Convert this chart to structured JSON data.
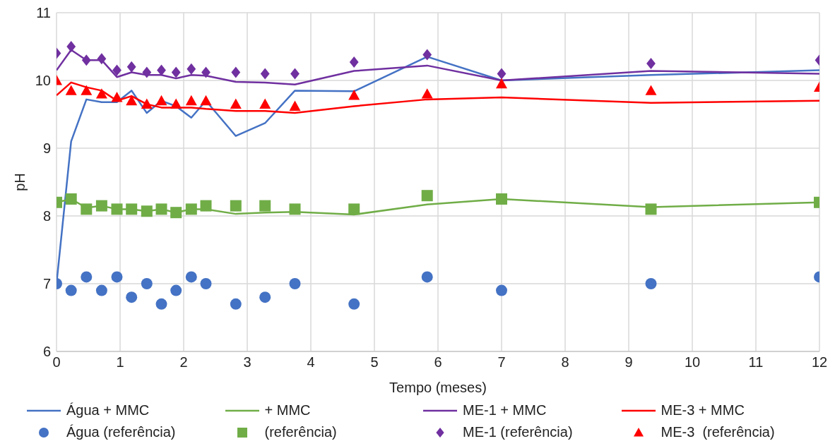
{
  "chart_data": {
    "type": "line",
    "xlabel": "Tempo (meses)",
    "ylabel": "pH",
    "x": [
      0,
      0.23,
      0.47,
      0.71,
      0.95,
      1.18,
      1.42,
      1.65,
      1.88,
      2.12,
      2.35,
      2.82,
      3.28,
      3.75,
      4.68,
      5.83,
      7.0,
      9.35,
      12
    ],
    "series": [
      {
        "name": "Água + MMC",
        "marker": "none",
        "color": "#4472c4",
        "values": [
          7.0,
          9.1,
          9.72,
          9.68,
          9.68,
          9.85,
          9.52,
          9.7,
          9.62,
          9.45,
          9.7,
          9.18,
          9.37,
          9.85,
          9.84,
          10.35,
          10.0,
          10.08,
          10.15
        ]
      },
      {
        "name": "+ MMC",
        "marker": "none",
        "color": "#70ad47",
        "values": [
          8.2,
          8.25,
          8.12,
          8.15,
          8.1,
          8.1,
          8.07,
          8.1,
          8.05,
          8.1,
          8.1,
          8.03,
          8.05,
          8.06,
          8.02,
          8.17,
          8.25,
          8.13,
          8.2
        ]
      },
      {
        "name": "ME-1 + MMC",
        "marker": "none",
        "color": "#7030a0",
        "values": [
          10.15,
          10.45,
          10.3,
          10.3,
          10.05,
          10.12,
          10.08,
          10.08,
          10.03,
          10.08,
          10.07,
          9.98,
          9.97,
          9.94,
          10.14,
          10.22,
          10.0,
          10.14,
          10.1
        ]
      },
      {
        "name": "ME-3 + MMC",
        "marker": "none",
        "color": "#ff0000",
        "values": [
          9.78,
          9.97,
          9.9,
          9.85,
          9.7,
          9.77,
          9.65,
          9.6,
          9.6,
          9.6,
          9.58,
          9.55,
          9.55,
          9.52,
          9.62,
          9.72,
          9.75,
          9.67,
          9.7
        ]
      },
      {
        "name": "Água (referência)",
        "type": "scatter",
        "marker": "circle",
        "color": "#4472c4",
        "values": [
          7.0,
          6.9,
          7.1,
          6.9,
          7.1,
          6.8,
          7.0,
          6.7,
          6.9,
          7.1,
          7.0,
          6.7,
          6.8,
          7.0,
          6.7,
          7.1,
          6.9,
          7.0,
          7.1
        ]
      },
      {
        "name": "(referência)",
        "type": "scatter",
        "marker": "square",
        "color": "#70ad47",
        "values": [
          8.2,
          8.25,
          8.1,
          8.15,
          8.1,
          8.1,
          8.07,
          8.1,
          8.05,
          8.1,
          8.15,
          8.15,
          8.15,
          8.1,
          8.1,
          8.3,
          8.25,
          8.1,
          8.2
        ]
      },
      {
        "name": "ME-1 (referência)",
        "type": "scatter",
        "marker": "diamond",
        "color": "#7030a0",
        "values": [
          10.4,
          10.5,
          10.3,
          10.32,
          10.15,
          10.2,
          10.12,
          10.15,
          10.12,
          10.17,
          10.12,
          10.12,
          10.1,
          10.1,
          10.27,
          10.38,
          10.1,
          10.25,
          10.3
        ]
      },
      {
        "name": "ME-3  (referência)",
        "type": "scatter",
        "marker": "triangle",
        "color": "#ff0000",
        "values": [
          10.0,
          9.85,
          9.85,
          9.8,
          9.75,
          9.7,
          9.65,
          9.7,
          9.65,
          9.7,
          9.7,
          9.65,
          9.65,
          9.62,
          9.78,
          9.8,
          9.95,
          9.85,
          9.9
        ]
      }
    ],
    "xlim": [
      0,
      12
    ],
    "xticks": [
      0,
      1,
      2,
      3,
      4,
      5,
      6,
      7,
      8,
      9,
      10,
      11,
      12
    ],
    "ylim": [
      6,
      11
    ],
    "yticks": [
      6,
      7,
      8,
      9,
      10,
      11
    ],
    "grid": true,
    "legend": "bottom"
  }
}
